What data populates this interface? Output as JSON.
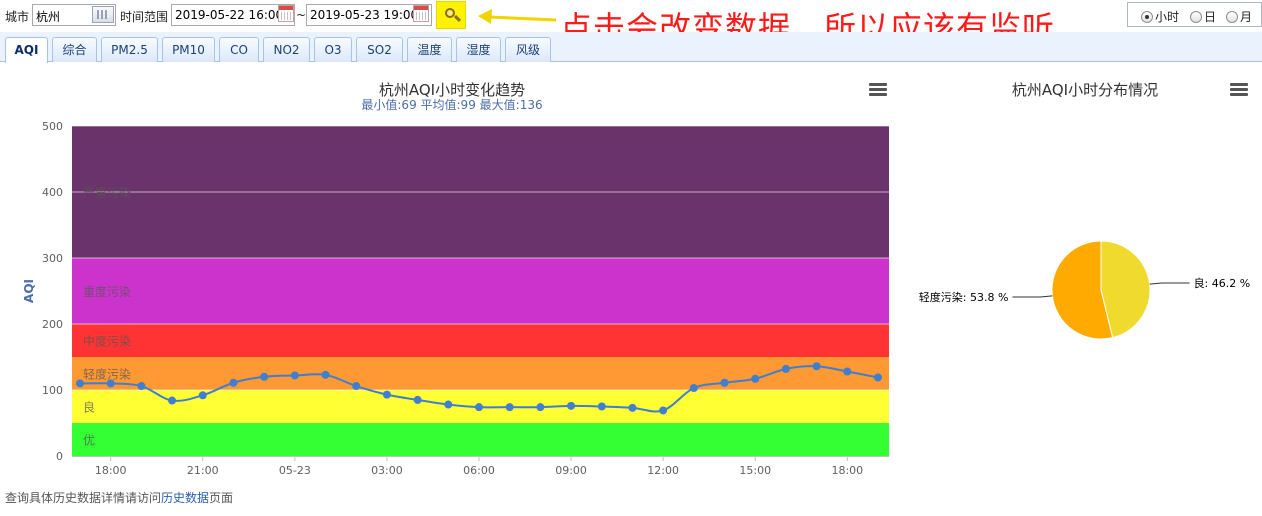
{
  "toolbar": {
    "city_label": "城市",
    "city_value": "杭州",
    "time_range_label": "时间范围",
    "start_time": "2019-05-22 16:00",
    "separator": "~",
    "end_time": "2019-05-23 19:00"
  },
  "annotation": {
    "text": "点击会改变数据，所以应该有监听",
    "color": "#ff1a1a"
  },
  "period": {
    "options": [
      "小时",
      "日",
      "月"
    ],
    "selected": "小时"
  },
  "tabs": [
    "AQI",
    "综合",
    "PM2.5",
    "PM10",
    "CO",
    "NO2",
    "O3",
    "SO2",
    "温度",
    "湿度",
    "风级"
  ],
  "active_tab": "AQI",
  "chart_data": [
    {
      "type": "line",
      "title": "杭州AQI小时变化趋势",
      "subtitle": "最小值:69 平均值:99 最大值:136",
      "ylabel": "AQI",
      "ylim": [
        0,
        500
      ],
      "yticks": [
        0,
        100,
        200,
        300,
        400,
        500
      ],
      "xticks": [
        "18:00",
        "21:00",
        "05-23",
        "03:00",
        "06:00",
        "09:00",
        "12:00",
        "15:00",
        "18:00"
      ],
      "x": [
        "2019-05-22 17:00",
        "2019-05-22 18:00",
        "2019-05-22 19:00",
        "2019-05-22 20:00",
        "2019-05-22 21:00",
        "2019-05-22 22:00",
        "2019-05-22 23:00",
        "2019-05-23 00:00",
        "2019-05-23 01:00",
        "2019-05-23 02:00",
        "2019-05-23 03:00",
        "2019-05-23 04:00",
        "2019-05-23 05:00",
        "2019-05-23 06:00",
        "2019-05-23 07:00",
        "2019-05-23 08:00",
        "2019-05-23 09:00",
        "2019-05-23 10:00",
        "2019-05-23 11:00",
        "2019-05-23 12:00",
        "2019-05-23 13:00",
        "2019-05-23 14:00",
        "2019-05-23 15:00",
        "2019-05-23 16:00",
        "2019-05-23 17:00",
        "2019-05-23 18:00",
        "2019-05-23 19:00"
      ],
      "series": [
        {
          "values": [
            110,
            110,
            106,
            84,
            92,
            111,
            120,
            122,
            123,
            106,
            93,
            85,
            78,
            74,
            74,
            74,
            76,
            75,
            73,
            69,
            103,
            111,
            117,
            132,
            136,
            128,
            119
          ],
          "color": "#3f7ed0"
        }
      ],
      "bands": [
        {
          "label": "优",
          "from": 0,
          "to": 50,
          "color": "#33ff33"
        },
        {
          "label": "良",
          "from": 50,
          "to": 100,
          "color": "#ffff33"
        },
        {
          "label": "轻度污染",
          "from": 100,
          "to": 150,
          "color": "#ff9933"
        },
        {
          "label": "中度污染",
          "from": 150,
          "to": 200,
          "color": "#ff3333"
        },
        {
          "label": "重度污染",
          "from": 200,
          "to": 300,
          "color": "#cc33cc"
        },
        {
          "label": "严重污染",
          "from": 300,
          "to": 500,
          "color": "#6b336b"
        }
      ]
    },
    {
      "type": "pie",
      "title": "杭州AQI小时分布情况",
      "slices": [
        {
          "label": "良",
          "value": 46.2,
          "display": "良: 46.2 %",
          "color": "#f0da2e"
        },
        {
          "label": "轻度污染",
          "value": 53.8,
          "display": "轻度污染: 53.8 %",
          "color": "#ffaa00"
        }
      ]
    }
  ],
  "footer": {
    "prefix": "查询具体历史数据详情请访问",
    "link": "历史数据",
    "suffix": "页面"
  }
}
